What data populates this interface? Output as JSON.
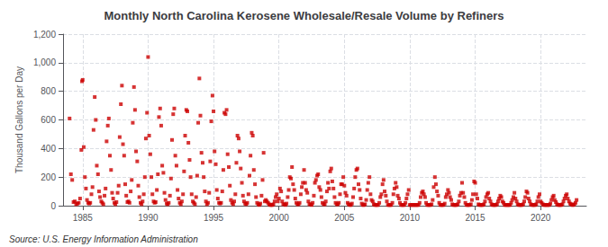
{
  "chart_data": {
    "type": "scatter",
    "title": "Monthly North Carolina Kerosene Wholesale/Resale Volume by Refiners",
    "ylabel": "Thousand Gallons per Day",
    "annotations": [
      "Source: U.S. Energy Information Administration"
    ],
    "color": "#cc0000",
    "marker": "square",
    "grid": true,
    "xlim": [
      1983.5,
      2023.5
    ],
    "xticks": [
      1985,
      1990,
      1995,
      2000,
      2005,
      2010,
      2015,
      2020
    ],
    "ylim": [
      0,
      1200
    ],
    "yticks": [
      0,
      200,
      400,
      600,
      800,
      {
        "value": 1000,
        "label": "1,000"
      },
      {
        "value": 1200,
        "label": "1,200"
      }
    ],
    "x": [
      1984.0,
      1984.1,
      1984.2,
      1984.3,
      1984.4,
      1984.5,
      1984.6,
      1984.7,
      1984.8,
      1984.9,
      1984.95,
      1985.0,
      1985.08,
      1985.17,
      1985.25,
      1985.33,
      1985.42,
      1985.5,
      1985.58,
      1985.67,
      1985.75,
      1985.83,
      1985.92,
      1986.0,
      1986.08,
      1986.17,
      1986.25,
      1986.33,
      1986.42,
      1986.5,
      1986.58,
      1986.67,
      1986.75,
      1986.83,
      1986.92,
      1987.0,
      1987.08,
      1987.17,
      1987.25,
      1987.33,
      1987.42,
      1987.5,
      1987.58,
      1987.67,
      1987.75,
      1987.83,
      1987.92,
      1988.0,
      1988.08,
      1988.17,
      1988.25,
      1988.33,
      1988.42,
      1988.5,
      1988.58,
      1988.67,
      1988.75,
      1988.83,
      1988.92,
      1989.0,
      1989.08,
      1989.17,
      1989.25,
      1989.33,
      1989.42,
      1989.5,
      1989.58,
      1989.67,
      1989.75,
      1989.83,
      1989.92,
      1990.0,
      1990.08,
      1990.17,
      1990.25,
      1990.33,
      1990.42,
      1990.5,
      1990.58,
      1990.67,
      1990.75,
      1990.83,
      1990.92,
      1991.0,
      1991.08,
      1991.17,
      1991.25,
      1991.33,
      1991.42,
      1991.5,
      1991.58,
      1991.67,
      1991.75,
      1991.83,
      1991.92,
      1992.0,
      1992.08,
      1992.17,
      1992.25,
      1992.33,
      1992.42,
      1992.5,
      1992.58,
      1992.67,
      1992.75,
      1992.83,
      1992.92,
      1993.0,
      1993.08,
      1993.17,
      1993.25,
      1993.33,
      1993.42,
      1993.5,
      1993.58,
      1993.67,
      1993.75,
      1993.83,
      1993.92,
      1994.0,
      1994.08,
      1994.17,
      1994.25,
      1994.33,
      1994.42,
      1994.5,
      1994.58,
      1994.67,
      1994.75,
      1994.83,
      1994.92,
      1995.0,
      1995.08,
      1995.17,
      1995.25,
      1995.33,
      1995.42,
      1995.5,
      1995.58,
      1995.67,
      1995.75,
      1995.83,
      1995.92,
      1996.0,
      1996.08,
      1996.17,
      1996.25,
      1996.33,
      1996.42,
      1996.5,
      1996.58,
      1996.67,
      1996.75,
      1996.83,
      1996.92,
      1997.0,
      1997.08,
      1997.17,
      1997.25,
      1997.33,
      1997.42,
      1997.5,
      1997.58,
      1997.67,
      1997.75,
      1997.83,
      1997.92,
      1998.0,
      1998.08,
      1998.17,
      1998.25,
      1998.33,
      1998.42,
      1998.5,
      1998.58,
      1998.67,
      1998.75,
      1998.83,
      1998.92,
      1999.0,
      1999.08,
      1999.17,
      1999.25,
      1999.33,
      1999.42,
      1999.5,
      1999.58,
      1999.67,
      1999.75,
      1999.83,
      1999.92,
      2000.0,
      2000.08,
      2000.17,
      2000.25,
      2000.33,
      2000.42,
      2000.5,
      2000.58,
      2000.67,
      2000.75,
      2000.83,
      2000.92,
      2001.0,
      2001.08,
      2001.17,
      2001.25,
      2001.33,
      2001.42,
      2001.5,
      2001.58,
      2001.67,
      2001.75,
      2001.83,
      2001.92,
      2002.0,
      2002.08,
      2002.17,
      2002.25,
      2002.33,
      2002.42,
      2002.5,
      2002.58,
      2002.67,
      2002.75,
      2002.83,
      2002.92,
      2003.0,
      2003.08,
      2003.17,
      2003.25,
      2003.33,
      2003.42,
      2003.5,
      2003.58,
      2003.67,
      2003.75,
      2003.83,
      2003.92,
      2004.0,
      2004.08,
      2004.17,
      2004.25,
      2004.33,
      2004.42,
      2004.5,
      2004.58,
      2004.67,
      2004.75,
      2004.83,
      2004.92,
      2005.0,
      2005.08,
      2005.17,
      2005.25,
      2005.33,
      2005.42,
      2005.5,
      2005.58,
      2005.67,
      2005.75,
      2005.83,
      2005.92,
      2006.0,
      2006.08,
      2006.17,
      2006.25,
      2006.33,
      2006.42,
      2006.5,
      2006.58,
      2006.67,
      2006.75,
      2006.83,
      2006.92,
      2007.0,
      2007.08,
      2007.17,
      2007.25,
      2007.33,
      2007.42,
      2007.5,
      2007.58,
      2007.67,
      2007.75,
      2007.83,
      2007.92,
      2008.0,
      2008.08,
      2008.17,
      2008.25,
      2008.33,
      2008.42,
      2008.5,
      2008.58,
      2008.67,
      2008.75,
      2008.83,
      2008.92,
      2009.0,
      2009.08,
      2009.17,
      2009.25,
      2009.33,
      2009.42,
      2009.5,
      2009.58,
      2009.67,
      2009.75,
      2009.83,
      2009.92,
      2010.0,
      2010.08,
      2010.17,
      2010.25,
      2010.33,
      2010.42,
      2010.5,
      2010.58,
      2010.67,
      2010.75,
      2010.83,
      2010.92,
      2011.0,
      2011.08,
      2011.17,
      2011.25,
      2011.33,
      2011.42,
      2011.5,
      2011.58,
      2011.67,
      2011.75,
      2011.83,
      2011.92,
      2012.0,
      2012.08,
      2012.17,
      2012.25,
      2012.33,
      2012.42,
      2012.5,
      2012.58,
      2012.67,
      2012.75,
      2012.83,
      2012.92,
      2013.0,
      2013.08,
      2013.17,
      2013.25,
      2013.33,
      2013.42,
      2013.5,
      2013.58,
      2013.67,
      2013.75,
      2013.83,
      2013.92,
      2014.0,
      2014.08,
      2014.17,
      2014.25,
      2014.33,
      2014.42,
      2014.5,
      2014.58,
      2014.67,
      2014.75,
      2014.83,
      2014.92,
      2015.0,
      2015.08,
      2015.17,
      2015.25,
      2015.33,
      2015.42,
      2015.5,
      2015.58,
      2015.67,
      2015.75,
      2015.83,
      2015.92,
      2016.0,
      2016.08,
      2016.17,
      2016.25,
      2016.33,
      2016.42,
      2016.5,
      2016.58,
      2016.67,
      2016.75,
      2016.83,
      2016.92,
      2017.0,
      2017.08,
      2017.17,
      2017.25,
      2017.33,
      2017.42,
      2017.5,
      2017.58,
      2017.67,
      2017.75,
      2017.83,
      2017.92,
      2018.0,
      2018.08,
      2018.17,
      2018.25,
      2018.33,
      2018.42,
      2018.5,
      2018.58,
      2018.67,
      2018.75,
      2018.83,
      2018.92,
      2019.0,
      2019.08,
      2019.17,
      2019.25,
      2019.33,
      2019.42,
      2019.5,
      2019.58,
      2019.67,
      2019.75,
      2019.83,
      2019.92,
      2020.0,
      2020.08,
      2020.17,
      2020.25,
      2020.33,
      2020.42,
      2020.5,
      2020.58,
      2020.67,
      2020.75,
      2020.83,
      2020.92,
      2021.0,
      2021.08,
      2021.17,
      2021.25,
      2021.33,
      2021.42,
      2021.5,
      2021.58,
      2021.67,
      2021.75,
      2021.83,
      2021.92,
      2022.0,
      2022.08,
      2022.17,
      2022.25,
      2022.33,
      2022.42,
      2022.5,
      2022.58,
      2022.67,
      2022.75
    ],
    "values": [
      610,
      220,
      180,
      25,
      30,
      10,
      15,
      20,
      50,
      390,
      870,
      880,
      410,
      200,
      120,
      40,
      20,
      15,
      20,
      80,
      130,
      530,
      760,
      600,
      280,
      220,
      100,
      60,
      30,
      20,
      10,
      70,
      120,
      450,
      560,
      610,
      350,
      250,
      90,
      50,
      20,
      10,
      25,
      90,
      140,
      480,
      710,
      840,
      430,
      350,
      150,
      70,
      25,
      30,
      20,
      100,
      180,
      580,
      830,
      670,
      380,
      310,
      140,
      60,
      20,
      10,
      30,
      80,
      200,
      470,
      650,
      1040,
      490,
      360,
      200,
      80,
      30,
      20,
      25,
      110,
      220,
      620,
      680,
      560,
      280,
      230,
      90,
      40,
      15,
      10,
      20,
      70,
      190,
      460,
      640,
      680,
      350,
      280,
      110,
      50,
      20,
      10,
      30,
      80,
      240,
      490,
      670,
      660,
      440,
      320,
      200,
      80,
      30,
      20,
      10,
      60,
      210,
      580,
      890,
      630,
      370,
      300,
      200,
      100,
      30,
      10,
      20,
      90,
      310,
      590,
      770,
      660,
      380,
      290,
      110,
      50,
      20,
      15,
      20,
      100,
      250,
      650,
      640,
      670,
      360,
      270,
      140,
      40,
      20,
      10,
      30,
      80,
      300,
      490,
      470,
      380,
      260,
      160,
      70,
      30,
      15,
      10,
      20,
      80,
      210,
      350,
      510,
      490,
      250,
      150,
      60,
      20,
      10,
      5,
      15,
      70,
      180,
      370,
      30,
      40,
      30,
      20,
      10,
      5,
      5,
      5,
      10,
      30,
      60,
      80,
      30,
      50,
      120,
      100,
      30,
      10,
      10,
      5,
      15,
      60,
      110,
      200,
      190,
      270,
      150,
      110,
      50,
      20,
      10,
      10,
      20,
      80,
      130,
      160,
      250,
      160,
      110,
      90,
      30,
      10,
      10,
      5,
      20,
      70,
      160,
      180,
      210,
      220,
      130,
      110,
      60,
      20,
      10,
      10,
      30,
      100,
      160,
      120,
      240,
      260,
      170,
      120,
      60,
      20,
      10,
      10,
      20,
      80,
      150,
      150,
      200,
      140,
      90,
      70,
      20,
      10,
      5,
      5,
      15,
      60,
      120,
      200,
      250,
      260,
      150,
      110,
      50,
      15,
      5,
      5,
      10,
      40,
      110,
      160,
      200,
      80,
      40,
      30,
      10,
      5,
      5,
      5,
      5,
      20,
      60,
      80,
      150,
      180,
      100,
      70,
      30,
      5,
      5,
      5,
      5,
      20,
      80,
      120,
      160,
      130,
      70,
      50,
      20,
      5,
      5,
      5,
      5,
      20,
      50,
      80,
      110,
      5,
      5,
      5,
      5,
      5,
      5,
      5,
      5,
      5,
      20,
      60,
      90,
      100,
      80,
      60,
      20,
      5,
      5,
      5,
      5,
      10,
      40,
      130,
      200,
      150,
      100,
      70,
      20,
      5,
      5,
      5,
      5,
      15,
      60,
      80,
      110,
      90,
      60,
      40,
      10,
      5,
      5,
      5,
      5,
      10,
      30,
      70,
      90,
      160,
      90,
      60,
      20,
      5,
      5,
      5,
      5,
      10,
      40,
      80,
      170,
      160,
      80,
      50,
      10,
      5,
      5,
      5,
      5,
      10,
      30,
      60,
      80,
      90,
      50,
      30,
      10,
      5,
      5,
      5,
      5,
      10,
      30,
      50,
      70,
      60,
      30,
      20,
      5,
      5,
      5,
      5,
      5,
      5,
      20,
      40,
      60,
      90,
      50,
      30,
      10,
      5,
      5,
      5,
      5,
      10,
      30,
      60,
      100,
      90,
      50,
      30,
      10,
      5,
      5,
      5,
      5,
      10,
      30,
      60,
      80,
      30,
      20,
      10,
      5,
      5,
      5,
      5,
      5,
      5,
      15,
      40,
      60,
      70,
      40,
      25,
      10,
      5,
      5,
      5,
      5,
      10,
      30,
      50,
      70,
      80,
      50,
      30,
      15,
      10,
      5,
      5,
      10,
      20,
      40
    ]
  }
}
